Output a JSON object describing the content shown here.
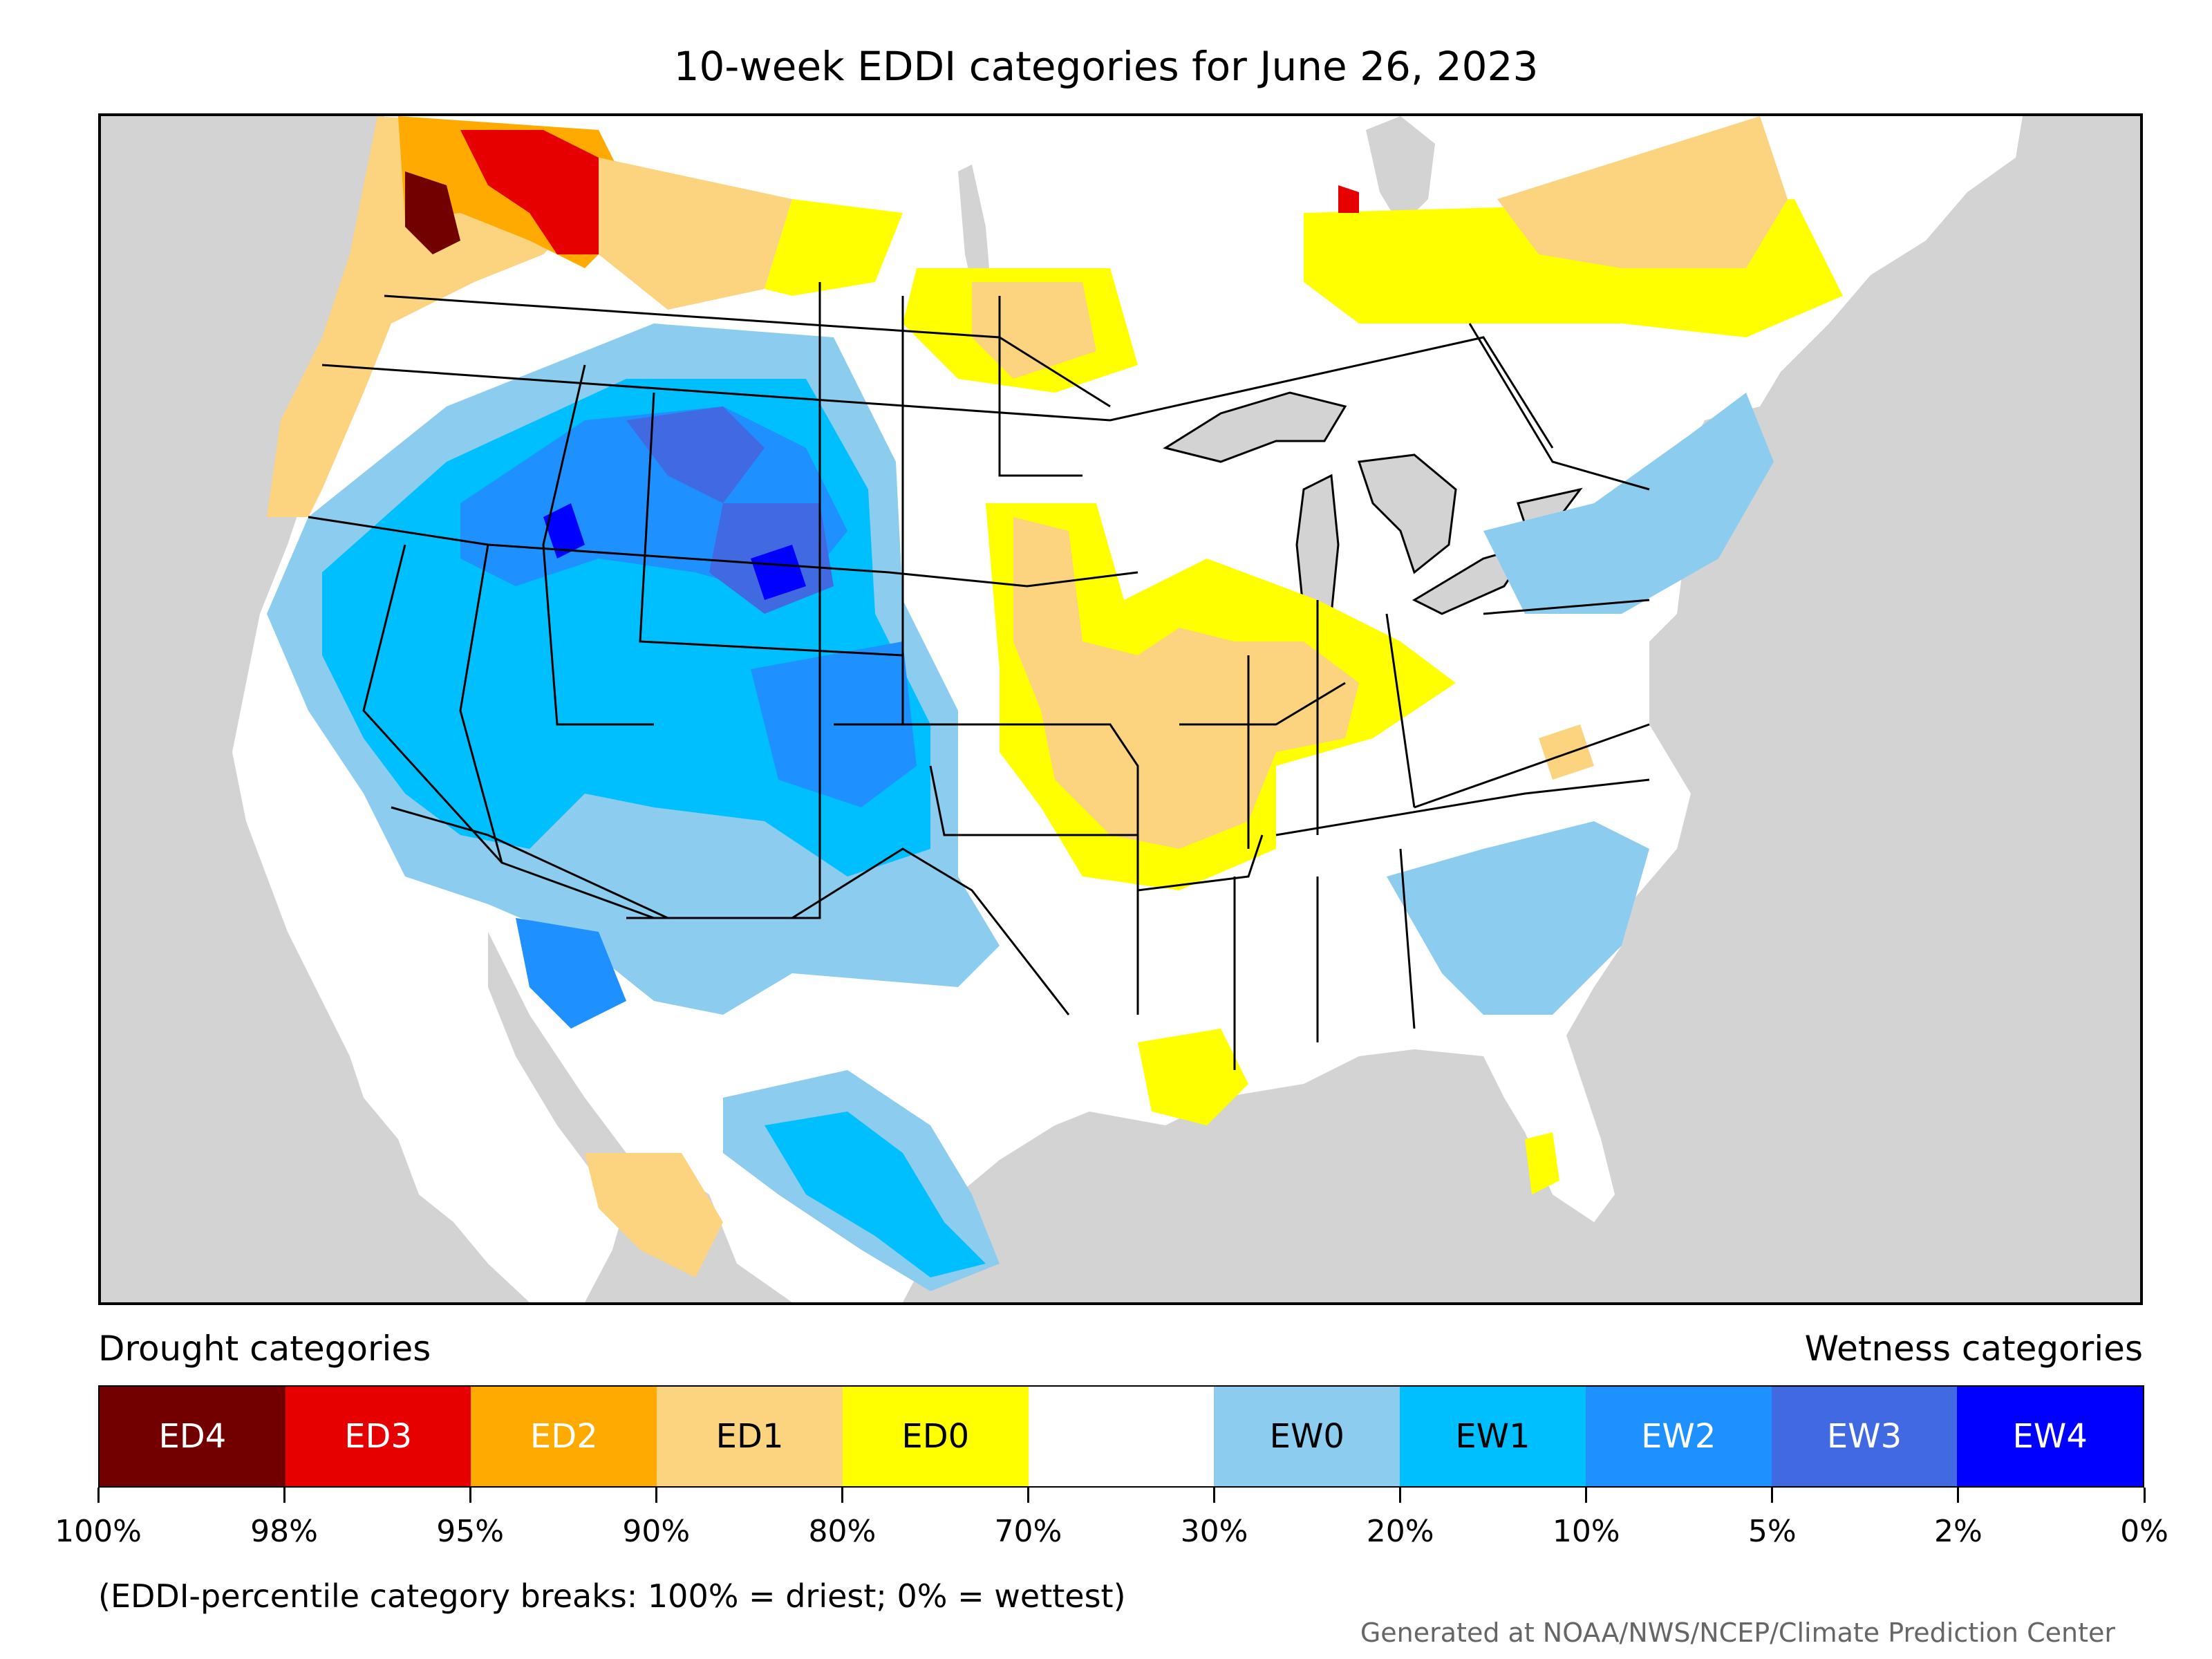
{
  "title": "10-week EDDI categories for June 26, 2023",
  "legend": {
    "drought_heading": "Drought categories",
    "wetness_heading": "Wetness categories",
    "categories": [
      {
        "label": "ED4",
        "color": "#730000",
        "text_color": "#ffffff"
      },
      {
        "label": "ED3",
        "color": "#e60000",
        "text_color": "#ffffff"
      },
      {
        "label": "ED2",
        "color": "#ffaa00",
        "text_color": "#ffffff"
      },
      {
        "label": "ED1",
        "color": "#fcd37f",
        "text_color": "#000000"
      },
      {
        "label": "ED0",
        "color": "#ffff00",
        "text_color": "#000000"
      },
      {
        "label": "",
        "color": "#ffffff",
        "text_color": "#000000"
      },
      {
        "label": "EW0",
        "color": "#8ccdef",
        "text_color": "#000000"
      },
      {
        "label": "EW1",
        "color": "#00bfff",
        "text_color": "#000000"
      },
      {
        "label": "EW2",
        "color": "#1e90ff",
        "text_color": "#ffffff"
      },
      {
        "label": "EW3",
        "color": "#4169e1",
        "text_color": "#ffffff"
      },
      {
        "label": "EW4",
        "color": "#0000ff",
        "text_color": "#ffffff"
      }
    ],
    "tick_labels": [
      "100%",
      "98%",
      "95%",
      "90%",
      "80%",
      "70%",
      "30%",
      "20%",
      "10%",
      "5%",
      "2%",
      "0%"
    ]
  },
  "note": "(EDDI-percentile category breaks: 100% = driest; 0% = wettest)",
  "credit": "Generated at NOAA/NWS/NCEP/Climate Prediction Center",
  "map": {
    "ocean_color": "#d3d3d3",
    "land_color": "#ffffff",
    "border_color": "#000000"
  }
}
